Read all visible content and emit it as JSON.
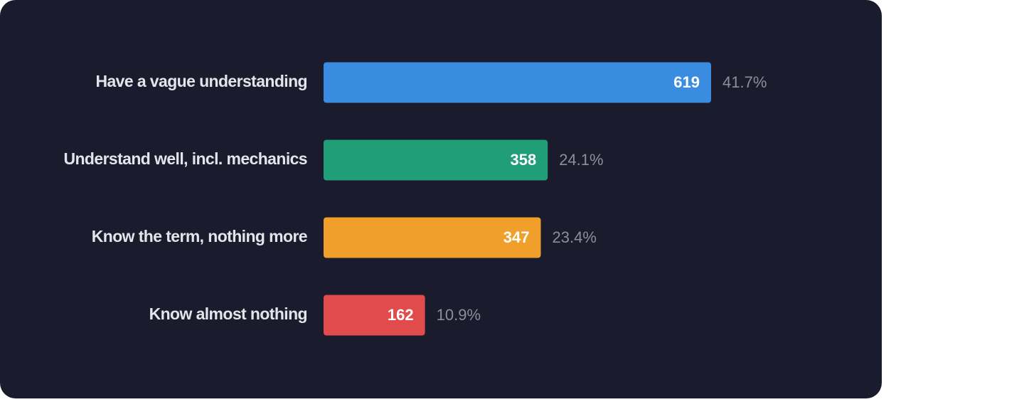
{
  "chart_data": {
    "type": "bar",
    "orientation": "horizontal",
    "categories": [
      "Have a vague understanding",
      "Understand well, incl. mechanics",
      "Know the term, nothing more",
      "Know almost nothing"
    ],
    "values": [
      619,
      358,
      347,
      162
    ],
    "percentages": [
      41.7,
      24.1,
      23.4,
      10.9
    ],
    "percentage_labels": [
      "41.7%",
      "24.1%",
      "23.4%",
      "10.9%"
    ],
    "colors": [
      "#3a8ce0",
      "#1f9e77",
      "#f0a02a",
      "#e24b4b"
    ]
  }
}
